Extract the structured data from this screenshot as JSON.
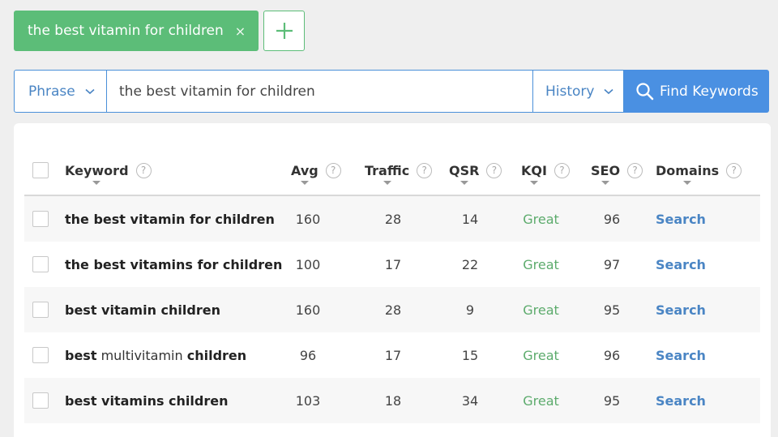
{
  "tag_chip": {
    "label": "the best vitamin for children",
    "close_glyph": "×"
  },
  "search": {
    "mode_label": "Phrase",
    "query": "the best vitamin for children",
    "history_label": "History",
    "find_label": "Find Keywords"
  },
  "table": {
    "headers": {
      "keyword": "Keyword",
      "avg": "Avg",
      "traffic": "Traffic",
      "qsr": "QSR",
      "kqi": "KQI",
      "seo": "SEO",
      "domains": "Domains"
    },
    "help_glyph": "?",
    "rows": [
      {
        "keyword": [
          {
            "t": "the best vitamin for children",
            "b": true
          }
        ],
        "avg": "160",
        "traffic": "28",
        "qsr": "14",
        "kqi": "Great",
        "seo": "96",
        "domains": "Search"
      },
      {
        "keyword": [
          {
            "t": "the best vitamins for children",
            "b": true
          }
        ],
        "avg": "100",
        "traffic": "17",
        "qsr": "22",
        "kqi": "Great",
        "seo": "97",
        "domains": "Search"
      },
      {
        "keyword": [
          {
            "t": "best vitamin children",
            "b": true
          }
        ],
        "avg": "160",
        "traffic": "28",
        "qsr": "9",
        "kqi": "Great",
        "seo": "95",
        "domains": "Search"
      },
      {
        "keyword": [
          {
            "t": "best",
            "b": true
          },
          {
            "t": " multivitamin ",
            "b": false
          },
          {
            "t": "children",
            "b": true
          }
        ],
        "avg": "96",
        "traffic": "17",
        "qsr": "15",
        "kqi": "Great",
        "seo": "96",
        "domains": "Search"
      },
      {
        "keyword": [
          {
            "t": "best vitamins children",
            "b": true
          }
        ],
        "avg": "103",
        "traffic": "18",
        "qsr": "34",
        "kqi": "Great",
        "seo": "95",
        "domains": "Search"
      }
    ]
  },
  "colors": {
    "accent_green": "#5cbd78",
    "accent_blue": "#4a90e2",
    "kqi_great": "#5cab6c",
    "link": "#4a85c4"
  }
}
